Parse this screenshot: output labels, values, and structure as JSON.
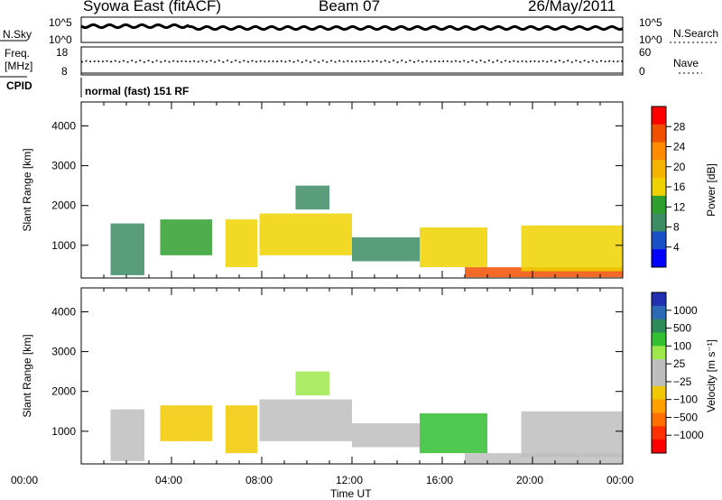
{
  "header": {
    "station": "Syowa East (fitACF)",
    "beam": "Beam 07",
    "date": "26/May/2011"
  },
  "top_panels": {
    "nsky_label": "N.Sky",
    "nsky_ticks": [
      "10^5",
      "10^0"
    ],
    "nsearch_label": "N.Search",
    "nsearch_ticks": [
      "10^5",
      "10^0"
    ],
    "freq_label": "Freq.",
    "freq_unit": "[MHz]",
    "freq_ticks": [
      "18",
      "8"
    ],
    "nave_label": "Nave",
    "nave_ticks": [
      "60",
      "0"
    ],
    "cpid_label": "CPID",
    "cpid_text": "normal (fast) 151 RF"
  },
  "axes": {
    "xlabel": "Time UT",
    "xticks": [
      "00:00",
      "04:00",
      "08:00",
      "12:00",
      "16:00",
      "20:00",
      "00:00"
    ],
    "ylabel": "Slant Range [km]",
    "yticks": [
      "4000",
      "3000",
      "2000",
      "1000"
    ],
    "ylim": [
      180,
      4600
    ],
    "xlim_hours": [
      0,
      24
    ]
  },
  "colorbars": {
    "power": {
      "label": "Power [dB]",
      "ticks": [
        "28",
        "24",
        "20",
        "16",
        "12",
        "8",
        "4"
      ],
      "colors": [
        "#ff0000",
        "#f05000",
        "#ff8c00",
        "#f5b400",
        "#eed200",
        "#2fa02f",
        "#3c8c64",
        "#1a50c8",
        "#0000ff"
      ]
    },
    "velocity": {
      "label": "Velocity [m s⁻¹]",
      "ticks": [
        "1000",
        "500",
        "100",
        "25",
        "−25",
        "−100",
        "−500",
        "−1000"
      ],
      "colors": [
        "#2030b0",
        "#2c6ab8",
        "#2e8c5a",
        "#33c033",
        "#9de84a",
        "#bebebe",
        "#bebebe",
        "#f0c800",
        "#ffa000",
        "#ff7000",
        "#ff3000",
        "#ff0000"
      ]
    }
  },
  "chart_data": [
    {
      "type": "heatmap",
      "title": "Power [dB]",
      "xlabel": "Time UT",
      "ylabel": "Slant Range [km]",
      "xlim": [
        0,
        24
      ],
      "ylim": [
        180,
        4600
      ],
      "value_range": [
        0,
        30
      ],
      "regions": [
        {
          "t0": 1.3,
          "t1": 2.8,
          "r0": 250,
          "r1": 1550,
          "value": 9
        },
        {
          "t0": 3.5,
          "t1": 5.8,
          "r0": 750,
          "r1": 1650,
          "value": 13
        },
        {
          "t0": 6.4,
          "t1": 7.8,
          "r0": 450,
          "r1": 1650,
          "value": 15
        },
        {
          "t0": 7.9,
          "t1": 12.0,
          "r0": 750,
          "r1": 1800,
          "value": 15
        },
        {
          "t0": 9.5,
          "t1": 11.0,
          "r0": 1900,
          "r1": 2500,
          "value": 8
        },
        {
          "t0": 12.0,
          "t1": 15.0,
          "r0": 600,
          "r1": 1200,
          "value": 8
        },
        {
          "t0": 15.0,
          "t1": 18.0,
          "r0": 450,
          "r1": 1450,
          "value": 16
        },
        {
          "t0": 17.0,
          "t1": 24.0,
          "r0": 200,
          "r1": 450,
          "value": 26
        },
        {
          "t0": 19.5,
          "t1": 24.0,
          "r0": 350,
          "r1": 1500,
          "value": 14
        }
      ]
    },
    {
      "type": "heatmap",
      "title": "Velocity [m s⁻¹]",
      "xlabel": "Time UT",
      "ylabel": "Slant Range [km]",
      "xlim": [
        0,
        24
      ],
      "ylim": [
        180,
        4600
      ],
      "value_range": [
        -1000,
        1000
      ],
      "regions": [
        {
          "t0": 1.3,
          "t1": 2.8,
          "r0": 250,
          "r1": 1550,
          "value": 0
        },
        {
          "t0": 3.5,
          "t1": 5.8,
          "r0": 750,
          "r1": 1650,
          "value": -300
        },
        {
          "t0": 6.4,
          "t1": 7.8,
          "r0": 450,
          "r1": 1650,
          "value": -250
        },
        {
          "t0": 7.9,
          "t1": 12.0,
          "r0": 750,
          "r1": 1800,
          "value": 0
        },
        {
          "t0": 9.5,
          "t1": 11.0,
          "r0": 1900,
          "r1": 2500,
          "value": 300
        },
        {
          "t0": 12.0,
          "t1": 15.0,
          "r0": 600,
          "r1": 1200,
          "value": -50
        },
        {
          "t0": 15.0,
          "t1": 18.0,
          "r0": 450,
          "r1": 1450,
          "value": 400
        },
        {
          "t0": 17.0,
          "t1": 24.0,
          "r0": 200,
          "r1": 450,
          "value": -80
        },
        {
          "t0": 19.5,
          "t1": 24.0,
          "r0": 350,
          "r1": 1500,
          "value": 150
        }
      ]
    }
  ]
}
